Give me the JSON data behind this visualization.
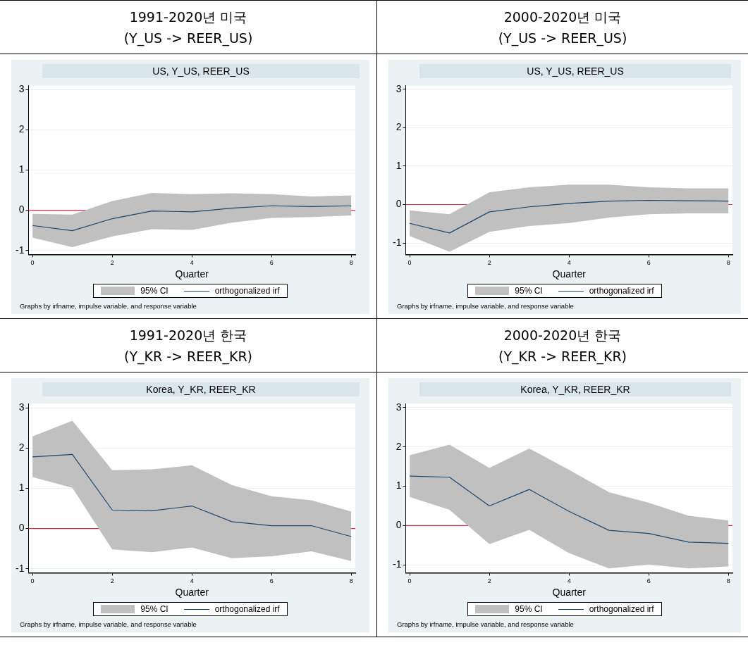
{
  "chart_data": [
    {
      "type": "line",
      "title": "1991-2020년 미국\n(Y_US -> REER_US)",
      "subtitle": "US, Y_US, REER_US",
      "xlabel": "Quarter",
      "x": [
        0,
        1,
        2,
        3,
        4,
        5,
        6,
        7,
        8
      ],
      "xlim": [
        -0.1,
        8.1
      ],
      "xticks": [
        0,
        2,
        4,
        6,
        8
      ],
      "ylim": [
        -1.1,
        3.1
      ],
      "yticks": [
        -1,
        0,
        1,
        2,
        3
      ],
      "grid": "y",
      "legend": "bottom",
      "marker": "none",
      "line_style": "solid",
      "series": [
        {
          "name": "orthogonalized irf",
          "color": "#1a476f",
          "values": [
            -0.38,
            -0.51,
            -0.21,
            -0.02,
            -0.04,
            0.05,
            0.11,
            0.09,
            0.11
          ],
          "lower": [
            -0.68,
            -0.92,
            -0.65,
            -0.47,
            -0.49,
            -0.31,
            -0.19,
            -0.17,
            -0.13
          ],
          "upper": [
            -0.09,
            -0.11,
            0.23,
            0.43,
            0.4,
            0.42,
            0.4,
            0.34,
            0.37
          ]
        }
      ],
      "ref_lines": [
        {
          "axis": "y",
          "value": 0,
          "color": "#e0294a"
        }
      ],
      "annotations": [
        "95% CI",
        "Graphs by irfname, impulse variable, and response variable"
      ]
    },
    {
      "type": "line",
      "title": "2000-2020년 미국\n(Y_US -> REER_US)",
      "subtitle": "US, Y_US, REER_US",
      "xlabel": "Quarter",
      "x": [
        0,
        1,
        2,
        3,
        4,
        5,
        6,
        7,
        8
      ],
      "xlim": [
        -0.1,
        8.1
      ],
      "xticks": [
        0,
        2,
        4,
        6,
        8
      ],
      "ylim": [
        -1.3,
        3.1
      ],
      "yticks": [
        -1,
        0,
        1,
        2,
        3
      ],
      "grid": "y",
      "legend": "bottom",
      "marker": "none",
      "line_style": "solid",
      "series": [
        {
          "name": "orthogonalized irf",
          "color": "#1a476f",
          "values": [
            -0.49,
            -0.74,
            -0.19,
            -0.06,
            0.03,
            0.09,
            0.11,
            0.1,
            0.09
          ],
          "lower": [
            -0.82,
            -1.23,
            -0.71,
            -0.56,
            -0.48,
            -0.34,
            -0.25,
            -0.23,
            -0.23
          ],
          "upper": [
            -0.15,
            -0.25,
            0.32,
            0.45,
            0.52,
            0.52,
            0.45,
            0.42,
            0.42
          ]
        }
      ],
      "ref_lines": [
        {
          "axis": "y",
          "value": 0,
          "color": "#e0294a"
        }
      ],
      "annotations": [
        "95% CI",
        "Graphs by irfname, impulse variable, and response variable"
      ]
    },
    {
      "type": "line",
      "title": "1991-2020년 한국\n(Y_KR -> REER_KR)",
      "subtitle": "Korea, Y_KR, REER_KR",
      "xlabel": "Quarter",
      "x": [
        0,
        1,
        2,
        3,
        4,
        5,
        6,
        7,
        8
      ],
      "xlim": [
        -0.1,
        8.1
      ],
      "xticks": [
        0,
        2,
        4,
        6,
        8
      ],
      "ylim": [
        -1.1,
        3.1
      ],
      "yticks": [
        -1,
        0,
        1,
        2,
        3
      ],
      "grid": "y",
      "legend": "bottom",
      "marker": "none",
      "line_style": "solid",
      "series": [
        {
          "name": "orthogonalized irf",
          "color": "#1a476f",
          "values": [
            1.78,
            1.84,
            0.46,
            0.44,
            0.56,
            0.17,
            0.07,
            0.07,
            -0.2
          ],
          "lower": [
            1.28,
            1.01,
            -0.52,
            -0.59,
            -0.47,
            -0.74,
            -0.69,
            -0.57,
            -0.81
          ],
          "upper": [
            2.29,
            2.68,
            1.45,
            1.47,
            1.57,
            1.08,
            0.8,
            0.7,
            0.42
          ]
        }
      ],
      "ref_lines": [
        {
          "axis": "y",
          "value": 0,
          "color": "#e0294a"
        }
      ],
      "annotations": [
        "95% CI",
        "Graphs by irfname, impulse variable, and response variable"
      ]
    },
    {
      "type": "line",
      "title": "2000-2020년 한국\n(Y_KR -> REER_KR)",
      "subtitle": "Korea, Y_KR, REER_KR",
      "xlabel": "Quarter",
      "x": [
        0,
        1,
        2,
        3,
        4,
        5,
        6,
        7,
        8
      ],
      "xlim": [
        -0.1,
        8.1
      ],
      "xticks": [
        0,
        2,
        4,
        6,
        8
      ],
      "ylim": [
        -1.2,
        3.1
      ],
      "yticks": [
        -1,
        0,
        1,
        2,
        3
      ],
      "grid": "y",
      "legend": "bottom",
      "marker": "none",
      "line_style": "solid",
      "series": [
        {
          "name": "orthogonalized irf",
          "color": "#1a476f",
          "values": [
            1.26,
            1.23,
            0.5,
            0.92,
            0.36,
            -0.12,
            -0.2,
            -0.42,
            -0.45
          ],
          "lower": [
            0.73,
            0.4,
            -0.47,
            -0.11,
            -0.7,
            -1.09,
            -0.99,
            -1.09,
            -1.04
          ],
          "upper": [
            1.79,
            2.06,
            1.47,
            1.96,
            1.42,
            0.85,
            0.58,
            0.25,
            0.13
          ]
        }
      ],
      "ref_lines": [
        {
          "axis": "y",
          "value": 0,
          "color": "#e0294a"
        }
      ],
      "annotations": [
        "95% CI",
        "Graphs by irfname, impulse variable, and response variable"
      ]
    }
  ]
}
